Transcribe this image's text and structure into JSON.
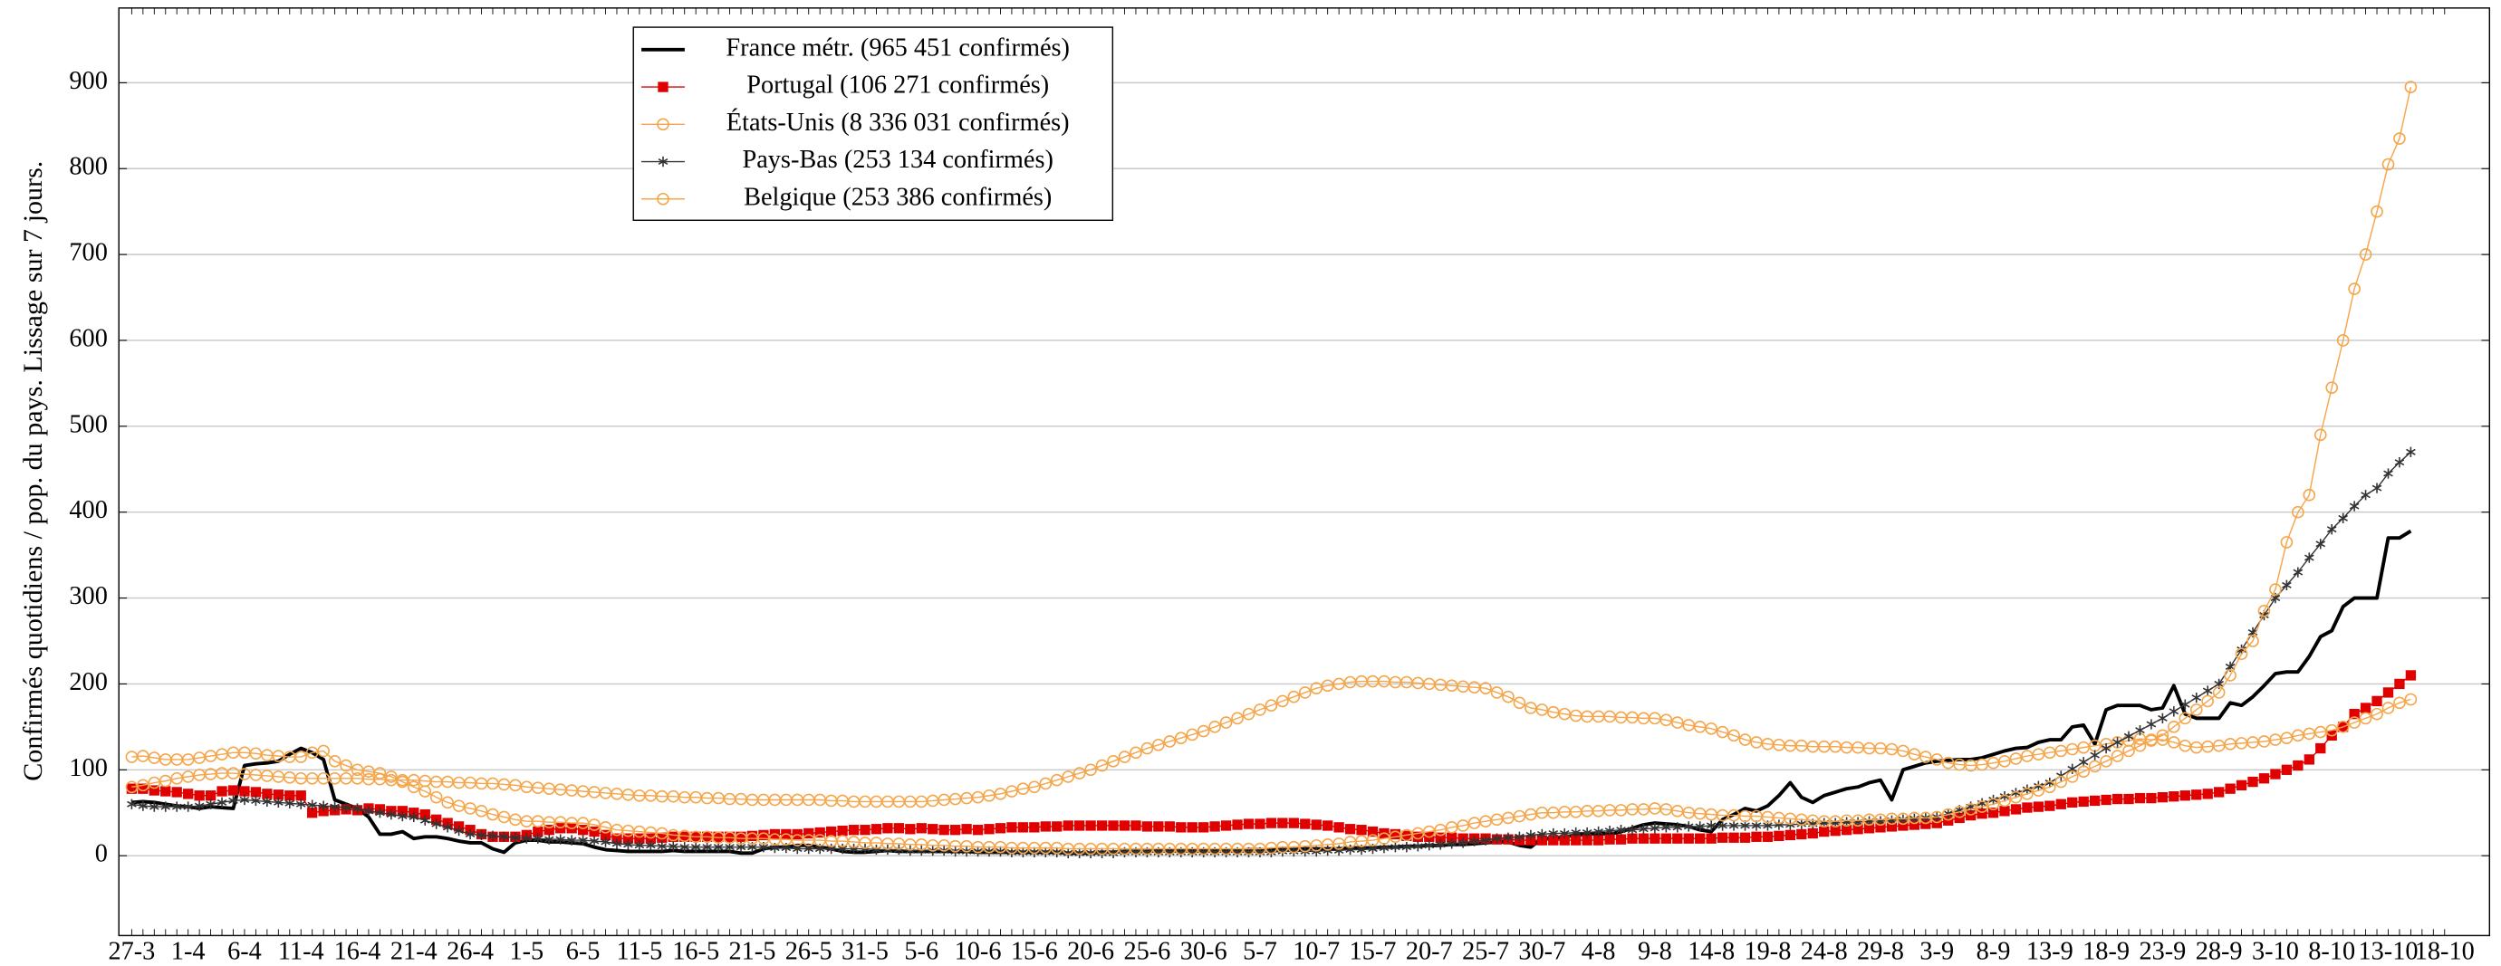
{
  "chart_data": {
    "type": "line",
    "ylabel": "Confirmés quotidiens / pop. du pays. Lissage sur 7 jours.",
    "categories": [
      "27-3",
      null,
      null,
      null,
      null,
      "1-4",
      null,
      null,
      null,
      null,
      "6-4",
      null,
      null,
      null,
      null,
      "11-4",
      null,
      null,
      null,
      null,
      "16-4",
      null,
      null,
      null,
      null,
      "21-4",
      null,
      null,
      null,
      null,
      "26-4",
      null,
      null,
      null,
      null,
      "1-5",
      null,
      null,
      null,
      null,
      "6-5",
      null,
      null,
      null,
      null,
      "11-5",
      null,
      null,
      null,
      null,
      "16-5",
      null,
      null,
      null,
      null,
      "21-5",
      null,
      null,
      null,
      null,
      "26-5",
      null,
      null,
      null,
      null,
      "31-5",
      null,
      null,
      null,
      null,
      "5-6",
      null,
      null,
      null,
      null,
      "10-6",
      null,
      null,
      null,
      null,
      "15-6",
      null,
      null,
      null,
      null,
      "20-6",
      null,
      null,
      null,
      null,
      "25-6",
      null,
      null,
      null,
      null,
      "30-6",
      null,
      null,
      null,
      null,
      "5-7",
      null,
      null,
      null,
      null,
      "10-7",
      null,
      null,
      null,
      null,
      "15-7",
      null,
      null,
      null,
      null,
      "20-7",
      null,
      null,
      null,
      null,
      "25-7",
      null,
      null,
      null,
      null,
      "30-7",
      null,
      null,
      null,
      null,
      "4-8",
      null,
      null,
      null,
      null,
      "9-8",
      null,
      null,
      null,
      null,
      "14-8",
      null,
      null,
      null,
      null,
      "19-8",
      null,
      null,
      null,
      null,
      "24-8",
      null,
      null,
      null,
      null,
      "29-8",
      null,
      null,
      null,
      null,
      "3-9",
      null,
      null,
      null,
      null,
      "8-9",
      null,
      null,
      null,
      null,
      "13-9",
      null,
      null,
      null,
      null,
      "18-9",
      null,
      null,
      null,
      null,
      "23-9",
      null,
      null,
      null,
      null,
      "28-9",
      null,
      null,
      null,
      null,
      "3-10",
      null,
      null,
      null,
      null,
      "8-10",
      null,
      null,
      null,
      null,
      "13-10",
      null,
      null,
      null,
      null,
      "18-10"
    ],
    "ylim": [
      -93,
      987
    ],
    "yticks": [
      0,
      100,
      200,
      300,
      400,
      500,
      600,
      700,
      800,
      900
    ],
    "grid": true,
    "legend": "upper left",
    "series": [
      {
        "name": "France métr. (965 451 confirmés)",
        "color": "#000000",
        "marker": "none",
        "values": [
          62,
          63,
          62,
          60,
          58,
          57,
          55,
          57,
          56,
          55,
          105,
          107,
          108,
          110,
          118,
          125,
          120,
          112,
          65,
          60,
          55,
          45,
          25,
          25,
          28,
          20,
          22,
          22,
          20,
          17,
          15,
          15,
          8,
          4,
          15,
          18,
          18,
          16,
          16,
          15,
          14,
          10,
          7,
          6,
          5,
          5,
          5,
          5,
          6,
          5,
          5,
          5,
          5,
          5,
          3,
          3,
          8,
          10,
          10,
          12,
          12,
          10,
          8,
          5,
          4,
          4,
          5,
          6,
          5,
          5,
          5,
          5,
          5,
          5,
          5,
          4,
          4,
          4,
          4,
          4,
          4,
          4,
          4,
          3,
          3,
          3,
          4,
          4,
          5,
          5,
          5,
          6,
          6,
          6,
          6,
          6,
          6,
          6,
          6,
          7,
          7,
          7,
          7,
          7,
          8,
          8,
          8,
          8,
          9,
          9,
          9,
          10,
          10,
          11,
          11,
          12,
          12,
          13,
          13,
          14,
          15,
          16,
          16,
          12,
          10,
          20,
          20,
          22,
          24,
          25,
          26,
          25,
          28,
          32,
          36,
          38,
          37,
          36,
          34,
          30,
          28,
          42,
          48,
          55,
          52,
          58,
          70,
          85,
          68,
          62,
          70,
          74,
          78,
          80,
          85,
          88,
          65,
          100,
          104,
          108,
          110,
          111,
          112,
          112,
          114,
          118,
          122,
          125,
          126,
          132,
          135,
          135,
          150,
          152,
          130,
          170,
          175,
          175,
          175,
          170,
          172,
          198,
          165,
          160,
          160,
          160,
          178,
          175,
          185,
          198,
          212,
          214,
          214,
          232,
          255,
          262,
          290,
          300,
          300,
          300,
          370,
          370,
          378,
          null,
          null,
          null
        ]
      },
      {
        "name": "Portugal (106 271 confirmés)",
        "color": "#e00000",
        "marker": "square",
        "values": [
          78,
          78,
          76,
          75,
          74,
          72,
          70,
          70,
          75,
          76,
          75,
          74,
          72,
          71,
          70,
          70,
          50,
          52,
          53,
          54,
          53,
          55,
          54,
          52,
          52,
          50,
          48,
          42,
          38,
          34,
          30,
          25,
          22,
          22,
          22,
          24,
          28,
          30,
          32,
          32,
          30,
          28,
          24,
          20,
          20,
          20,
          20,
          21,
          22,
          22,
          22,
          22,
          22,
          22,
          22,
          23,
          24,
          25,
          25,
          25,
          26,
          27,
          28,
          29,
          30,
          30,
          31,
          32,
          32,
          31,
          32,
          31,
          30,
          30,
          31,
          30,
          31,
          32,
          33,
          33,
          33,
          34,
          34,
          35,
          35,
          35,
          35,
          35,
          35,
          35,
          34,
          34,
          34,
          33,
          33,
          33,
          34,
          35,
          36,
          37,
          37,
          38,
          38,
          38,
          37,
          36,
          35,
          33,
          31,
          30,
          28,
          26,
          25,
          23,
          22,
          22,
          21,
          21,
          20,
          20,
          20,
          19,
          19,
          18,
          18,
          18,
          18,
          18,
          18,
          18,
          18,
          19,
          19,
          20,
          20,
          20,
          20,
          20,
          20,
          20,
          20,
          21,
          21,
          21,
          22,
          22,
          23,
          24,
          25,
          26,
          28,
          29,
          30,
          31,
          32,
          33,
          34,
          35,
          36,
          37,
          38,
          41,
          44,
          47,
          49,
          50,
          52,
          54,
          56,
          57,
          58,
          60,
          62,
          63,
          64,
          65,
          66,
          66,
          67,
          67,
          68,
          69,
          70,
          71,
          72,
          74,
          78,
          82,
          86,
          90,
          95,
          100,
          105,
          112,
          125,
          140,
          150,
          165,
          172,
          180,
          190,
          200,
          210,
          null,
          null,
          null
        ]
      },
      {
        "name": "États-Unis (8 336 031 confirmés)",
        "color": "#f5a54a",
        "marker": "circle",
        "values": [
          80,
          82,
          85,
          87,
          90,
          92,
          94,
          95,
          96,
          96,
          95,
          94,
          93,
          92,
          91,
          90,
          90,
          90,
          90,
          90,
          90,
          89,
          89,
          88,
          88,
          88,
          87,
          86,
          86,
          85,
          85,
          84,
          84,
          83,
          82,
          80,
          79,
          78,
          77,
          76,
          75,
          74,
          73,
          72,
          71,
          70,
          70,
          69,
          69,
          68,
          68,
          67,
          67,
          66,
          66,
          65,
          65,
          65,
          65,
          65,
          65,
          65,
          64,
          64,
          63,
          63,
          63,
          63,
          63,
          63,
          63,
          64,
          65,
          66,
          67,
          68,
          70,
          72,
          75,
          78,
          80,
          84,
          88,
          92,
          96,
          100,
          105,
          110,
          115,
          120,
          125,
          129,
          133,
          137,
          141,
          145,
          150,
          155,
          160,
          165,
          170,
          175,
          180,
          185,
          190,
          195,
          198,
          200,
          202,
          203,
          203,
          203,
          202,
          202,
          201,
          200,
          199,
          198,
          197,
          196,
          195,
          190,
          185,
          178,
          172,
          170,
          167,
          165,
          163,
          162,
          162,
          162,
          161,
          161,
          160,
          160,
          158,
          155,
          152,
          150,
          148,
          144,
          140,
          135,
          132,
          130,
          129,
          128,
          128,
          127,
          127,
          127,
          126,
          126,
          125,
          125,
          124,
          122,
          118,
          115,
          112,
          108,
          106,
          105,
          106,
          108,
          110,
          113,
          116,
          118,
          120,
          122,
          124,
          126,
          128,
          130,
          132,
          134,
          136,
          135,
          135,
          132,
          128,
          126,
          127,
          128,
          130,
          131,
          132,
          133,
          135,
          137,
          140,
          142,
          144,
          146,
          150,
          155,
          160,
          165,
          172,
          178,
          182,
          null,
          null,
          null
        ]
      },
      {
        "name": "Pays-Bas (253 134 confirmés)",
        "color": "#333333",
        "marker": "star",
        "values": [
          60,
          58,
          57,
          57,
          57,
          57,
          58,
          60,
          62,
          64,
          65,
          64,
          63,
          62,
          61,
          60,
          59,
          58,
          57,
          56,
          55,
          52,
          50,
          48,
          46,
          45,
          41,
          37,
          33,
          29,
          25,
          24,
          23,
          22,
          21,
          20,
          20,
          19,
          19,
          18,
          18,
          17,
          16,
          14,
          13,
          12,
          12,
          11,
          11,
          10,
          10,
          10,
          10,
          10,
          10,
          10,
          10,
          9,
          9,
          8,
          8,
          8,
          8,
          8,
          8,
          8,
          7,
          7,
          7,
          6,
          6,
          6,
          6,
          5,
          5,
          5,
          5,
          5,
          4,
          4,
          4,
          4,
          4,
          3,
          3,
          3,
          3,
          3,
          4,
          4,
          4,
          4,
          4,
          4,
          4,
          4,
          4,
          4,
          4,
          4,
          4,
          4,
          5,
          5,
          5,
          5,
          6,
          6,
          7,
          7,
          8,
          9,
          10,
          10,
          11,
          12,
          13,
          14,
          15,
          17,
          18,
          20,
          21,
          22,
          24,
          25,
          26,
          26,
          27,
          27,
          28,
          29,
          30,
          30,
          31,
          32,
          33,
          33,
          34,
          34,
          35,
          35,
          35,
          35,
          35,
          35,
          36,
          36,
          37,
          37,
          38,
          38,
          39,
          39,
          40,
          40,
          41,
          42,
          43,
          44,
          45,
          49,
          53,
          57,
          61,
          65,
          69,
          73,
          77,
          81,
          85,
          93,
          101,
          109,
          117,
          125,
          132,
          139,
          146,
          153,
          160,
          168,
          176,
          184,
          192,
          200,
          220,
          240,
          260,
          280,
          300,
          315,
          330,
          347,
          363,
          380,
          393,
          407,
          420,
          428,
          445,
          458,
          470,
          null,
          null,
          null
        ]
      },
      {
        "name": "Belgique (253 386 confirmés)",
        "color": "#f5a54a",
        "marker": "circle",
        "values": [
          115,
          116,
          114,
          112,
          112,
          112,
          114,
          116,
          118,
          120,
          120,
          119,
          117,
          116,
          115,
          115,
          120,
          122,
          110,
          105,
          100,
          98,
          96,
          92,
          86,
          80,
          75,
          68,
          62,
          58,
          55,
          52,
          48,
          45,
          42,
          40,
          40,
          39,
          39,
          38,
          38,
          36,
          33,
          30,
          29,
          28,
          27,
          26,
          24,
          23,
          22,
          22,
          21,
          21,
          20,
          20,
          20,
          19,
          19,
          18,
          18,
          18,
          17,
          17,
          16,
          15,
          15,
          14,
          14,
          13,
          13,
          12,
          12,
          11,
          11,
          10,
          10,
          10,
          9,
          9,
          9,
          9,
          9,
          8,
          8,
          8,
          8,
          8,
          8,
          8,
          8,
          8,
          8,
          8,
          8,
          8,
          8,
          8,
          8,
          8,
          8,
          9,
          10,
          10,
          11,
          12,
          13,
          14,
          16,
          17,
          18,
          20,
          22,
          24,
          26,
          28,
          30,
          33,
          35,
          38,
          40,
          42,
          44,
          46,
          48,
          50,
          50,
          51,
          51,
          52,
          52,
          53,
          53,
          54,
          54,
          55,
          54,
          52,
          50,
          49,
          48,
          47,
          47,
          46,
          46,
          45,
          44,
          43,
          42,
          41,
          40,
          40,
          41,
          41,
          42,
          42,
          43,
          43,
          44,
          44,
          45,
          48,
          51,
          54,
          57,
          60,
          64,
          68,
          72,
          76,
          80,
          86,
          92,
          98,
          104,
          110,
          116,
          122,
          128,
          134,
          140,
          150,
          160,
          170,
          180,
          190,
          210,
          235,
          250,
          285,
          310,
          365,
          400,
          420,
          490,
          545,
          600,
          660,
          700,
          750,
          805,
          835,
          895,
          null,
          null,
          null
        ]
      }
    ]
  }
}
